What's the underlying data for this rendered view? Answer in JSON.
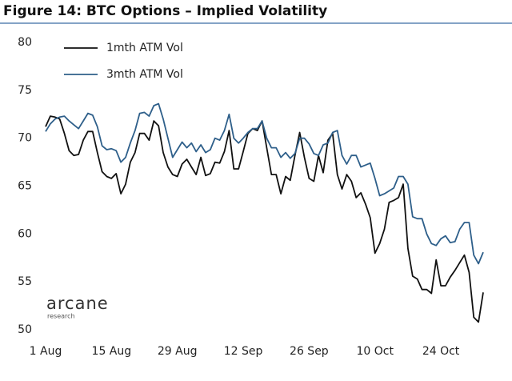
{
  "chart_data": {
    "type": "line",
    "title": "Figure 14: BTC Options – Implied Volatility",
    "categories": [
      "1 Aug",
      null,
      null,
      null,
      null,
      null,
      null,
      null,
      null,
      null,
      null,
      null,
      null,
      null,
      "15 Aug",
      null,
      null,
      null,
      null,
      null,
      null,
      null,
      null,
      null,
      null,
      null,
      null,
      null,
      "29 Aug",
      null,
      null,
      null,
      null,
      null,
      null,
      null,
      null,
      null,
      null,
      null,
      null,
      null,
      "12 Sep",
      null,
      null,
      null,
      null,
      null,
      null,
      null,
      null,
      null,
      null,
      null,
      null,
      null,
      "26 Sep",
      null,
      null,
      null,
      null,
      null,
      null,
      null,
      null,
      null,
      null,
      null,
      null,
      null,
      "10 Oct",
      null,
      null,
      null,
      null,
      null,
      null,
      null,
      null,
      null,
      null,
      null,
      null,
      null,
      "24 Oct",
      null,
      null,
      null,
      null,
      null,
      null,
      null,
      null,
      null
    ],
    "series": [
      {
        "name": "1mth ATM Vol",
        "color": "#111111",
        "values": [
          71.2,
          72.3,
          72.2,
          72,
          70.5,
          68.7,
          68.2,
          68.3,
          69.8,
          70.7,
          70.7,
          68.5,
          66.5,
          66,
          65.8,
          66.3,
          64.2,
          65.2,
          67.5,
          68.5,
          70.5,
          70.5,
          69.8,
          71.8,
          71.3,
          68.5,
          67,
          66.2,
          66,
          67.3,
          67.8,
          67,
          66.2,
          68,
          66.1,
          66.3,
          67.5,
          67.4,
          68.6,
          70.8,
          66.8,
          66.8,
          68.6,
          70.5,
          71,
          70.8,
          71.8,
          69,
          66.2,
          66.2,
          64.2,
          66,
          65.6,
          68.2,
          70.6,
          68,
          65.8,
          65.5,
          68.2,
          66.4,
          69.8,
          70.5,
          66.2,
          64.7,
          66.2,
          65.5,
          63.8,
          64.3,
          63.1,
          61.7,
          58,
          59,
          60.5,
          63.3,
          63.5,
          63.8,
          65.2,
          58.5,
          55.6,
          55.3,
          54.2,
          54.2,
          53.8,
          57.3,
          54.6,
          54.6,
          55.5,
          56.2,
          57,
          57.8,
          56,
          51.3,
          50.8,
          53.9
        ]
      },
      {
        "name": "3mth ATM Vol",
        "color": "#2e5f8a",
        "values": [
          70.7,
          71.5,
          72,
          72.2,
          72.3,
          71.8,
          71.4,
          71,
          71.8,
          72.6,
          72.4,
          71.2,
          69.2,
          68.8,
          68.9,
          68.7,
          67.5,
          68,
          69.5,
          70.8,
          72.6,
          72.7,
          72.3,
          73.4,
          73.6,
          72,
          70,
          68,
          68.8,
          69.6,
          69,
          69.5,
          68.6,
          69.3,
          68.5,
          68.8,
          70,
          69.8,
          70.8,
          72.5,
          70,
          69.5,
          70,
          70.6,
          71,
          71,
          71.8,
          70,
          69,
          69,
          68,
          68.5,
          67.9,
          68.4,
          70,
          70,
          69.4,
          68.4,
          68.2,
          69.3,
          69.5,
          70.6,
          70.8,
          68.2,
          67.3,
          68.2,
          68.2,
          67,
          67.2,
          67.4,
          65.8,
          64,
          64.2,
          64.5,
          64.8,
          66,
          66,
          65.2,
          61.8,
          61.6,
          61.6,
          60,
          59,
          58.8,
          59.5,
          59.8,
          59.1,
          59.2,
          60.5,
          61.2,
          61.2,
          57.8,
          56.9,
          58.1
        ]
      }
    ],
    "ylim": [
      50,
      80
    ],
    "yticks": [
      50,
      55,
      60,
      65,
      70,
      75,
      80
    ],
    "grid": false,
    "legend": "top-left",
    "logo": {
      "name": "arcane",
      "sub": "research"
    }
  }
}
